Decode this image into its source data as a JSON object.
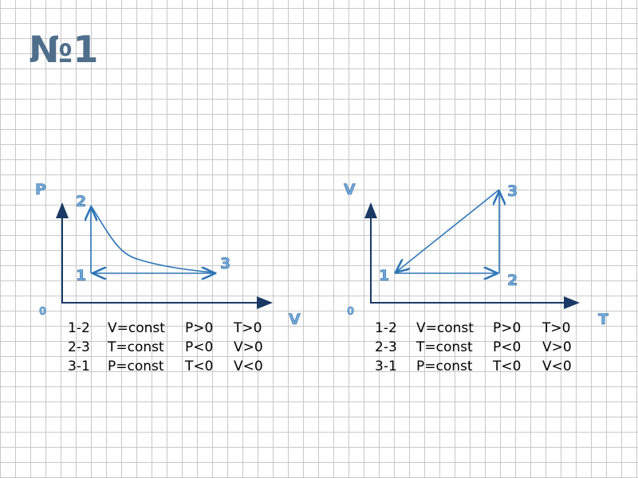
{
  "title": "№1",
  "diagrams": [
    {
      "y_axis_label": "P",
      "x_axis_label": "V",
      "origin": "0",
      "points": [
        "1",
        "2",
        "3"
      ],
      "rows": [
        [
          "1-2",
          "V=const",
          "P>0",
          "T>0"
        ],
        [
          "2-3",
          "T=const",
          "P<0",
          "V>0"
        ],
        [
          "3-1",
          "P=const",
          "T<0",
          "V<0"
        ]
      ]
    },
    {
      "y_axis_label": "V",
      "x_axis_label": "T",
      "origin": "0",
      "points": [
        "1",
        "2",
        "3"
      ],
      "rows": [
        [
          "1-2",
          "V=const",
          "P>0",
          "T>0"
        ],
        [
          "2-3",
          "T=const",
          "P<0",
          "V>0"
        ],
        [
          "3-1",
          "P=const",
          "T<0",
          "V<0"
        ]
      ]
    }
  ]
}
